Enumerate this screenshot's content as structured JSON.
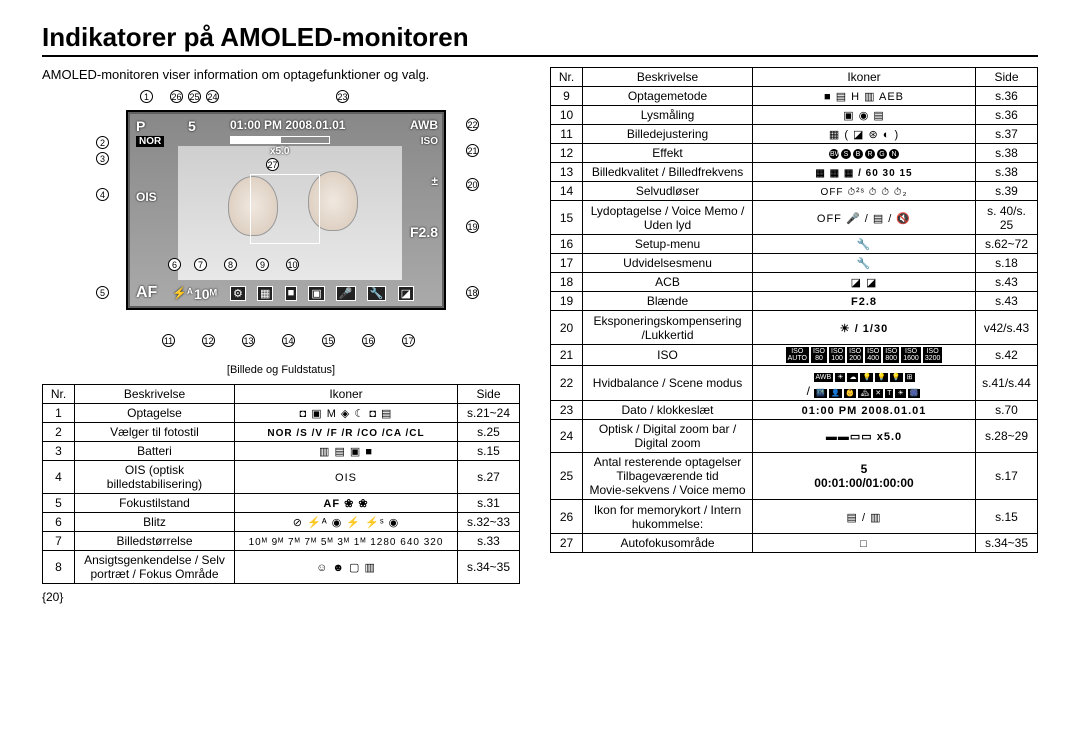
{
  "title": "Indikatorer på AMOLED-monitoren",
  "intro": "AMOLED-monitoren viser information om optagefunktioner og valg.",
  "caption": "[Billede og Fuldstatus]",
  "page_num": "{20}",
  "table_headers": {
    "nr": "Nr.",
    "desc": "Beskrivelse",
    "icon": "Ikoner",
    "side": "Side"
  },
  "display": {
    "count": "5",
    "time": "01:00 PM 2008.01.01",
    "awb": "AWB",
    "nor": "NOR",
    "iso": "ISO",
    "ev": "±",
    "f": "F2.8",
    "af": "AF",
    "size": "10ᴹ",
    "x5": "x5.0",
    "flash": "⚡ᴬ",
    "mode": "P",
    "ois": "OIS"
  },
  "callouts_top": [
    "1",
    "26",
    "25",
    "24",
    "23"
  ],
  "callouts_right": [
    "22",
    "21",
    "20",
    "19",
    "18"
  ],
  "callouts_left": [
    "2",
    "3",
    "4",
    "5"
  ],
  "callouts_mid": [
    "6",
    "7",
    "8",
    "9",
    "10",
    "27"
  ],
  "callouts_bottom": [
    "11",
    "12",
    "13",
    "14",
    "15",
    "16",
    "17"
  ],
  "rows_left": [
    {
      "nr": "1",
      "desc": "Optagelse",
      "icon": "◘ ▣ M ◈ ☾ ◘ ▤",
      "side": "s.21~24"
    },
    {
      "nr": "2",
      "desc": "Vælger til fotostil",
      "icon": "NOR /S /V /F /R /CO /CA /CL",
      "side": "s.25",
      "iconbold": true,
      "iconsmall": true
    },
    {
      "nr": "3",
      "desc": "Batteri",
      "icon": "▥ ▤ ▣ ■",
      "side": "s.15"
    },
    {
      "nr": "4",
      "desc": "OIS (optisk billedstabilisering)",
      "icon": "OIS",
      "side": "s.27"
    },
    {
      "nr": "5",
      "desc": "Fokustilstand",
      "icon": "AF  ❀  ❀",
      "side": "s.31",
      "iconbold": true
    },
    {
      "nr": "6",
      "desc": "Blitz",
      "icon": "⊘ ⚡ᴬ ◉ ⚡ ⚡ˢ ◉",
      "side": "s.32~33"
    },
    {
      "nr": "7",
      "desc": "Billedstørrelse",
      "icon": "10ᴹ 9ᴹ 7ᴹ 7ᴹ 5ᴹ 3ᴹ 1ᴹ 1280 640 320",
      "side": "s.33",
      "iconsmall": true
    },
    {
      "nr": "8",
      "desc": "Ansigtsgenkendelse / Selv portræt / Fokus Område",
      "icon": "☺ ☻ ▢ ▥",
      "side": "s.34~35"
    }
  ],
  "rows_right": [
    {
      "nr": "9",
      "desc": "Optagemetode",
      "icon": "■ ▤ H ▥ AEB",
      "side": "s.36"
    },
    {
      "nr": "10",
      "desc": "Lysmåling",
      "icon": "▣ ◉ ▤",
      "side": "s.36"
    },
    {
      "nr": "11",
      "desc": "Billedejustering",
      "icon": "▦ ( ◪ ⊛ ◐ )",
      "side": "s.37"
    },
    {
      "nr": "12",
      "desc": "Effekt",
      "icon": "BW S B R G N",
      "side": "s.38",
      "effectcircles": true
    },
    {
      "nr": "13",
      "desc": "Billedkvalitet / Billedfrekvens",
      "icon": "▦ ▦ ▦ / 60 30 15",
      "side": "s.38",
      "iconbold": true,
      "iconsmall": true
    },
    {
      "nr": "14",
      "desc": "Selvudløser",
      "icon": "OFF ⏱²ˢ ⏱ ⏱ ⏱₂",
      "side": "s.39",
      "iconsmall": true
    },
    {
      "nr": "15",
      "desc": "Lydoptagelse / Voice Memo / Uden lyd",
      "icon": "OFF 🎤 / ▤ / 🔇",
      "side": "s. 40/s. 25",
      "tall": true
    },
    {
      "nr": "16",
      "desc": "Setup-menu",
      "icon": "🔧",
      "side": "s.62~72"
    },
    {
      "nr": "17",
      "desc": "Udvidelsesmenu",
      "icon": "🔧",
      "side": "s.18"
    },
    {
      "nr": "18",
      "desc": "ACB",
      "icon": "◪ ◪",
      "side": "s.43"
    },
    {
      "nr": "19",
      "desc": "Blænde",
      "icon": "F2.8",
      "side": "s.43",
      "iconbold": true
    },
    {
      "nr": "20",
      "desc": "Eksponeringskompensering /Lukkertid",
      "icon": "☀ / 1/30",
      "side": "v42/s.43",
      "iconbold": true,
      "tall": true
    },
    {
      "nr": "21",
      "desc": "ISO",
      "icon": "ISO_ROW",
      "side": "s.42"
    },
    {
      "nr": "22",
      "desc": "Hvidbalance / Scene modus",
      "icon": "WB_ROW",
      "side": "s.41/s.44",
      "tall": true
    },
    {
      "nr": "23",
      "desc": "Dato / klokkeslæt",
      "icon": "01:00 PM 2008.01.01",
      "side": "s.70",
      "iconbold": true
    },
    {
      "nr": "24",
      "desc": "Optisk / Digital zoom bar / Digital zoom",
      "icon": "▬▬▭▭ x5.0",
      "side": "s.28~29",
      "iconbold": true
    },
    {
      "nr": "25",
      "desc": "Antal resterende optagelser Tilbageværende tid Movie-sekvens / Voice memo",
      "icon": "5\n00:01:00/01:00:00",
      "side": "s.17",
      "iconbold": true,
      "tall": true,
      "multi": true,
      "desc1": "Antal resterende optagelser",
      "desc2": "Tilbageværende tid",
      "desc3": "Movie-sekvens / Voice memo",
      "icon1": "5",
      "icon2": "00:01:00/01:00:00"
    },
    {
      "nr": "26",
      "desc": "Ikon for memorykort / Intern hukommelse:",
      "icon": "▤ / ▥",
      "side": "s.15",
      "tall": true
    },
    {
      "nr": "27",
      "desc": "Autofokusområde",
      "icon": "□",
      "side": "s.34~35"
    }
  ],
  "iso_labels": [
    "AUTO",
    "80",
    "100",
    "200",
    "400",
    "800",
    "1600",
    "3200"
  ],
  "wb_labels": [
    "AWB",
    "☀",
    "☁",
    "💡",
    "💡",
    "💡",
    "⊞"
  ],
  "scene_labels": [
    "🌃",
    "👤",
    "👶",
    "🏔",
    "✕",
    "T",
    "☀",
    "🎆"
  ]
}
